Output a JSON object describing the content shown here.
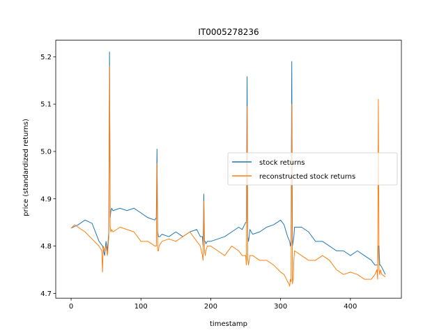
{
  "chart_data": {
    "type": "line",
    "title": "IT0005278236",
    "xlabel": "timestamp",
    "ylabel": "price (standardized returns)",
    "xlim": [
      -22,
      473
    ],
    "ylim": [
      4.69,
      5.235
    ],
    "xticks": [
      0,
      100,
      200,
      300,
      400
    ],
    "yticks": [
      4.7,
      4.8,
      4.9,
      5.0,
      5.1,
      5.2
    ],
    "ytick_labels": [
      "4.7",
      "4.8",
      "4.9",
      "5.0",
      "5.1",
      "5.2"
    ],
    "grid": false,
    "legend_position": "center-right",
    "series": [
      {
        "name": "stock returns",
        "color": "#1f77b4",
        "x": [
          0,
          10,
          20,
          30,
          40,
          45,
          48,
          50,
          52,
          54,
          55,
          56,
          57,
          58,
          60,
          70,
          80,
          90,
          100,
          110,
          120,
          122,
          123,
          124,
          125,
          126,
          127,
          130,
          140,
          150,
          160,
          170,
          180,
          185,
          188,
          189,
          190,
          191,
          192,
          193,
          195,
          200,
          210,
          220,
          230,
          240,
          245,
          250,
          251,
          252,
          253,
          254,
          255,
          256,
          260,
          270,
          280,
          290,
          300,
          305,
          310,
          313,
          314,
          315,
          316,
          317,
          318,
          319,
          320,
          325,
          330,
          340,
          350,
          360,
          370,
          380,
          390,
          400,
          410,
          420,
          430,
          435,
          438,
          439,
          440,
          441,
          442,
          443,
          445,
          450
        ],
        "values": [
          4.838,
          4.845,
          4.855,
          4.848,
          4.81,
          4.8,
          4.78,
          4.81,
          4.79,
          4.83,
          5.21,
          4.86,
          4.875,
          4.88,
          4.875,
          4.88,
          4.875,
          4.88,
          4.87,
          4.86,
          4.855,
          4.86,
          5.005,
          4.83,
          4.82,
          4.82,
          4.82,
          4.825,
          4.82,
          4.83,
          4.82,
          4.83,
          4.835,
          4.82,
          4.82,
          4.8,
          4.91,
          4.81,
          4.81,
          4.805,
          4.81,
          4.81,
          4.815,
          4.82,
          4.83,
          4.84,
          4.835,
          4.85,
          4.85,
          5.158,
          4.82,
          4.81,
          4.82,
          4.835,
          4.825,
          4.83,
          4.84,
          4.845,
          4.855,
          4.845,
          4.82,
          4.81,
          4.8,
          4.81,
          5.19,
          4.8,
          4.81,
          4.82,
          4.84,
          4.84,
          4.84,
          4.83,
          4.81,
          4.81,
          4.8,
          4.79,
          4.79,
          4.78,
          4.79,
          4.78,
          4.77,
          4.76,
          4.76,
          4.76,
          4.8,
          4.8,
          4.76,
          4.76,
          4.755,
          4.74
        ]
      },
      {
        "name": "reconstructed stock returns",
        "color": "#ff7f0e",
        "x": [
          0,
          5,
          10,
          20,
          30,
          40,
          44,
          45,
          46,
          48,
          50,
          52,
          54,
          55,
          56,
          57,
          58,
          60,
          70,
          80,
          90,
          100,
          110,
          120,
          122,
          123,
          124,
          125,
          126,
          130,
          140,
          150,
          160,
          170,
          180,
          185,
          188,
          189,
          190,
          191,
          192,
          193,
          195,
          200,
          210,
          220,
          230,
          240,
          245,
          250,
          251,
          252,
          253,
          254,
          255,
          256,
          260,
          270,
          280,
          290,
          300,
          305,
          310,
          312,
          313,
          314,
          315,
          316,
          317,
          318,
          319,
          320,
          330,
          340,
          350,
          360,
          370,
          380,
          390,
          400,
          410,
          420,
          430,
          435,
          438,
          439,
          440,
          441,
          442,
          443,
          445,
          450
        ],
        "values": [
          4.838,
          4.845,
          4.84,
          4.83,
          4.815,
          4.8,
          4.79,
          4.745,
          4.8,
          4.79,
          4.8,
          4.78,
          4.82,
          5.18,
          4.84,
          4.83,
          4.835,
          4.83,
          4.84,
          4.835,
          4.83,
          4.81,
          4.81,
          4.8,
          4.8,
          4.975,
          4.79,
          4.79,
          4.8,
          4.81,
          4.815,
          4.81,
          4.82,
          4.83,
          4.81,
          4.8,
          4.78,
          4.77,
          4.895,
          4.79,
          4.78,
          4.79,
          4.8,
          4.8,
          4.79,
          4.78,
          4.8,
          4.79,
          4.78,
          4.78,
          4.76,
          5.095,
          4.77,
          4.76,
          4.77,
          4.78,
          4.78,
          4.77,
          4.77,
          4.76,
          4.745,
          4.74,
          4.725,
          4.72,
          4.715,
          4.73,
          4.725,
          5.1,
          4.72,
          4.73,
          4.77,
          4.79,
          4.78,
          4.77,
          4.77,
          4.78,
          4.77,
          4.75,
          4.74,
          4.745,
          4.74,
          4.73,
          4.73,
          4.74,
          4.75,
          4.73,
          5.11,
          4.75,
          4.74,
          4.75,
          4.74,
          4.735
        ]
      }
    ]
  }
}
